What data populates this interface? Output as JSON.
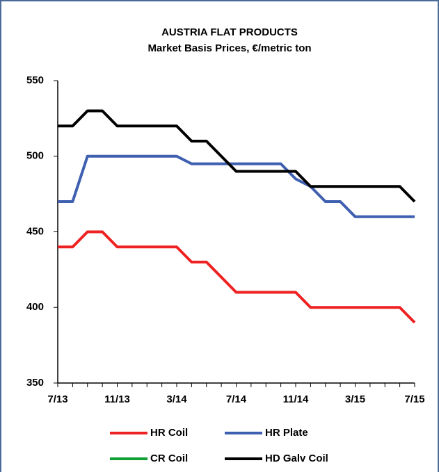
{
  "chart_data": {
    "type": "line",
    "title": "AUSTRIA FLAT PRODUCTS",
    "subtitle": "Market Basis Prices, €/metric ton",
    "categories": [
      "7/13",
      null,
      null,
      null,
      "11/13",
      null,
      null,
      null,
      "3/14",
      null,
      null,
      null,
      "7/14",
      null,
      null,
      null,
      "11/14",
      null,
      null,
      null,
      "3/15",
      null,
      null,
      null,
      "7/15"
    ],
    "series": [
      {
        "name": "HR Coil",
        "color": "#ee2222",
        "values": [
          440,
          440,
          450,
          450,
          440,
          440,
          440,
          440,
          440,
          430,
          430,
          420,
          410,
          410,
          410,
          410,
          410,
          400,
          400,
          400,
          400,
          400,
          400,
          400,
          390
        ]
      },
      {
        "name": "HR Plate",
        "color": "#3f5fb0",
        "values": [
          470,
          470,
          500,
          500,
          500,
          500,
          500,
          500,
          500,
          495,
          495,
          495,
          495,
          495,
          495,
          495,
          485,
          480,
          470,
          470,
          460,
          460,
          460,
          460,
          460
        ]
      },
      {
        "name": "CR Coil",
        "color": "#11a033",
        "values": [
          null,
          null,
          null,
          null,
          null,
          null,
          null,
          null,
          null,
          null,
          null,
          null,
          null,
          null,
          null,
          null,
          null,
          null,
          null,
          null,
          null,
          null,
          null,
          null,
          null
        ]
      },
      {
        "name": "HD Galv Coil",
        "color": "#000000",
        "values": [
          520,
          520,
          530,
          530,
          520,
          520,
          520,
          520,
          520,
          510,
          510,
          500,
          490,
          490,
          490,
          490,
          490,
          480,
          480,
          480,
          480,
          480,
          480,
          480,
          470
        ]
      }
    ],
    "ylim": [
      350,
      550
    ],
    "yticks": [
      350,
      400,
      450,
      500,
      550
    ]
  }
}
